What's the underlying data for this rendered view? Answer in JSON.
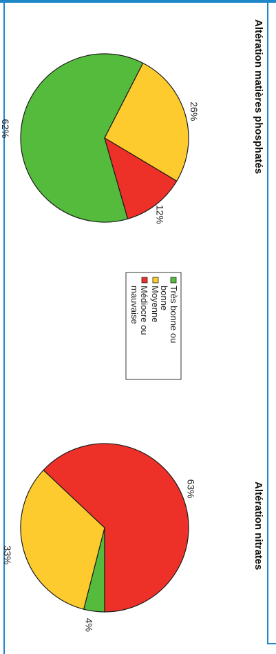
{
  "colors": {
    "frame": "#1f86c8",
    "very_good": "#55bb3c",
    "medium": "#fdcb2e",
    "poor": "#ee3128"
  },
  "chart_data": [
    {
      "type": "pie",
      "title": "Altération matières phosphatés",
      "categories": [
        "Très bonne ou bonne",
        "Moyenne",
        "Médiocre ou mauvaise"
      ],
      "values": [
        62,
        26,
        12
      ],
      "labels": [
        "62%",
        "26%",
        "12%"
      ]
    },
    {
      "type": "pie",
      "title": "Altération nitrates",
      "categories": [
        "Très bonne ou bonne",
        "Moyenne",
        "Médiocre ou mauvaise"
      ],
      "values": [
        4,
        33,
        63
      ],
      "labels": [
        "4%",
        "33%",
        "63%"
      ]
    }
  ],
  "legend": {
    "items": [
      {
        "lines": [
          "Très bonne ou",
          "bonne"
        ],
        "color_key": "very_good"
      },
      {
        "lines": [
          "Moyenne"
        ],
        "color_key": "medium"
      },
      {
        "lines": [
          "Médiocre ou",
          "mauvaise"
        ],
        "color_key": "poor"
      }
    ]
  }
}
